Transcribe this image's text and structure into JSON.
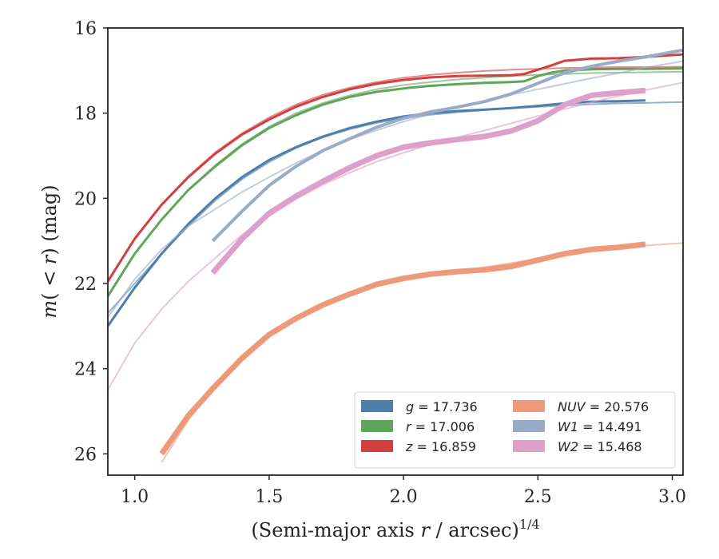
{
  "chart_data": {
    "type": "line",
    "title": "",
    "xlabel": "(Semi-major axis r / arcsec)^1/4",
    "xlabel_parts": {
      "prefix": "(Semi-major axis ",
      "var": "r",
      "suffix": " / arcsec)",
      "exp": "1/4"
    },
    "ylabel": "m(< r) (mag)",
    "ylabel_parts": {
      "m": "m",
      "open": "(",
      "lt": " < ",
      "r": "r",
      "close": ")",
      "unit": " (mag)"
    },
    "xlim": [
      0.9,
      3.04
    ],
    "ylim": [
      26.5,
      16
    ],
    "y_inverted": true,
    "x_ticks": [
      1.0,
      1.5,
      2.0,
      2.5,
      3.0
    ],
    "x_tick_labels": [
      "1.0",
      "1.5",
      "2.0",
      "2.5",
      "3.0"
    ],
    "y_ticks": [
      16,
      18,
      20,
      22,
      24,
      26
    ],
    "y_tick_labels": [
      "16",
      "18",
      "20",
      "22",
      "24",
      "26"
    ],
    "grid": false,
    "legend_position": "lower-right",
    "legend_columns": 2,
    "series": [
      {
        "name": "g = 17.736",
        "band": "g",
        "mag": "17.736",
        "color": "#4c7fac",
        "data": [
          [
            0.9,
            23.0
          ],
          [
            1.0,
            22.1
          ],
          [
            1.1,
            21.3
          ],
          [
            1.2,
            20.6
          ],
          [
            1.3,
            20.0
          ],
          [
            1.4,
            19.5
          ],
          [
            1.5,
            19.1
          ],
          [
            1.6,
            18.8
          ],
          [
            1.7,
            18.55
          ],
          [
            1.8,
            18.35
          ],
          [
            1.9,
            18.2
          ],
          [
            2.0,
            18.08
          ],
          [
            2.1,
            18.0
          ],
          [
            2.2,
            17.95
          ],
          [
            2.3,
            17.92
          ],
          [
            2.4,
            17.88
          ],
          [
            2.5,
            17.83
          ],
          [
            2.6,
            17.77
          ],
          [
            2.7,
            17.73
          ],
          [
            2.8,
            17.72
          ],
          [
            2.9,
            17.7
          ]
        ],
        "model": [
          [
            0.9,
            22.7
          ],
          [
            1.0,
            22.0
          ],
          [
            1.1,
            21.3
          ],
          [
            1.2,
            20.65
          ],
          [
            1.3,
            20.05
          ],
          [
            1.4,
            19.55
          ],
          [
            1.5,
            19.15
          ],
          [
            1.6,
            18.82
          ],
          [
            1.7,
            18.57
          ],
          [
            1.8,
            18.38
          ],
          [
            1.9,
            18.23
          ],
          [
            2.0,
            18.12
          ],
          [
            2.1,
            18.04
          ],
          [
            2.2,
            17.98
          ],
          [
            2.3,
            17.93
          ],
          [
            2.4,
            17.89
          ],
          [
            2.5,
            17.85
          ],
          [
            2.6,
            17.82
          ],
          [
            2.7,
            17.79
          ],
          [
            2.8,
            17.77
          ],
          [
            2.9,
            17.76
          ],
          [
            3.04,
            17.74
          ]
        ]
      },
      {
        "name": "r = 17.006",
        "band": "r",
        "mag": "17.006",
        "color": "#5fa55a",
        "data": [
          [
            0.9,
            22.3
          ],
          [
            1.0,
            21.3
          ],
          [
            1.1,
            20.5
          ],
          [
            1.2,
            19.8
          ],
          [
            1.3,
            19.25
          ],
          [
            1.4,
            18.75
          ],
          [
            1.5,
            18.35
          ],
          [
            1.6,
            18.05
          ],
          [
            1.7,
            17.8
          ],
          [
            1.8,
            17.62
          ],
          [
            1.9,
            17.5
          ],
          [
            2.0,
            17.42
          ],
          [
            2.1,
            17.36
          ],
          [
            2.2,
            17.32
          ],
          [
            2.3,
            17.29
          ],
          [
            2.4,
            17.27
          ],
          [
            2.45,
            17.25
          ],
          [
            2.5,
            17.13
          ],
          [
            2.55,
            17.05
          ],
          [
            2.6,
            17.0
          ],
          [
            2.7,
            16.97
          ],
          [
            2.8,
            16.96
          ],
          [
            2.9,
            16.96
          ],
          [
            3.04,
            16.95
          ]
        ],
        "model": [
          [
            0.9,
            22.3
          ],
          [
            1.0,
            21.3
          ],
          [
            1.1,
            20.5
          ],
          [
            1.2,
            19.8
          ],
          [
            1.3,
            19.22
          ],
          [
            1.4,
            18.72
          ],
          [
            1.5,
            18.32
          ],
          [
            1.6,
            18.0
          ],
          [
            1.7,
            17.76
          ],
          [
            1.8,
            17.58
          ],
          [
            1.9,
            17.44
          ],
          [
            2.0,
            17.34
          ],
          [
            2.1,
            17.27
          ],
          [
            2.2,
            17.21
          ],
          [
            2.3,
            17.17
          ],
          [
            2.4,
            17.13
          ],
          [
            2.5,
            17.1
          ],
          [
            2.6,
            17.08
          ],
          [
            2.7,
            17.06
          ],
          [
            2.8,
            17.05
          ],
          [
            2.9,
            17.04
          ],
          [
            3.04,
            17.03
          ]
        ]
      },
      {
        "name": "z = 16.859",
        "band": "z",
        "mag": "16.859",
        "color": "#d23f3f",
        "data": [
          [
            0.9,
            21.95
          ],
          [
            1.0,
            20.95
          ],
          [
            1.1,
            20.15
          ],
          [
            1.2,
            19.5
          ],
          [
            1.3,
            18.95
          ],
          [
            1.4,
            18.5
          ],
          [
            1.5,
            18.15
          ],
          [
            1.6,
            17.85
          ],
          [
            1.7,
            17.62
          ],
          [
            1.8,
            17.44
          ],
          [
            1.9,
            17.31
          ],
          [
            2.0,
            17.22
          ],
          [
            2.1,
            17.16
          ],
          [
            2.2,
            17.13
          ],
          [
            2.3,
            17.12
          ],
          [
            2.4,
            17.11
          ],
          [
            2.45,
            17.08
          ],
          [
            2.5,
            16.98
          ],
          [
            2.55,
            16.88
          ],
          [
            2.6,
            16.77
          ],
          [
            2.7,
            16.72
          ],
          [
            2.8,
            16.71
          ],
          [
            2.9,
            16.68
          ],
          [
            3.04,
            16.62
          ]
        ],
        "model": [
          [
            0.9,
            21.95
          ],
          [
            1.0,
            20.95
          ],
          [
            1.1,
            20.15
          ],
          [
            1.2,
            19.48
          ],
          [
            1.3,
            18.92
          ],
          [
            1.4,
            18.47
          ],
          [
            1.5,
            18.1
          ],
          [
            1.6,
            17.8
          ],
          [
            1.7,
            17.57
          ],
          [
            1.8,
            17.4
          ],
          [
            1.9,
            17.27
          ],
          [
            2.0,
            17.17
          ],
          [
            2.1,
            17.1
          ],
          [
            2.2,
            17.05
          ],
          [
            2.3,
            17.01
          ],
          [
            2.4,
            16.98
          ],
          [
            2.5,
            16.96
          ],
          [
            2.6,
            16.94
          ],
          [
            2.7,
            16.93
          ],
          [
            2.8,
            16.92
          ],
          [
            2.9,
            16.92
          ],
          [
            3.04,
            16.91
          ]
        ]
      },
      {
        "name": "NUV = 20.576",
        "band": "NUV",
        "mag": "20.576",
        "color": "#ee9a7a",
        "data": [
          [
            1.1,
            26.0
          ],
          [
            1.2,
            25.1
          ],
          [
            1.3,
            24.4
          ],
          [
            1.4,
            23.75
          ],
          [
            1.5,
            23.2
          ],
          [
            1.6,
            22.82
          ],
          [
            1.7,
            22.5
          ],
          [
            1.8,
            22.25
          ],
          [
            1.9,
            22.02
          ],
          [
            2.0,
            21.88
          ],
          [
            2.1,
            21.78
          ],
          [
            2.2,
            21.72
          ],
          [
            2.3,
            21.68
          ],
          [
            2.4,
            21.6
          ],
          [
            2.5,
            21.45
          ],
          [
            2.6,
            21.3
          ],
          [
            2.7,
            21.2
          ],
          [
            2.8,
            21.15
          ],
          [
            2.9,
            21.08
          ]
        ],
        "model": [
          [
            1.1,
            26.2
          ],
          [
            1.2,
            25.2
          ],
          [
            1.3,
            24.4
          ],
          [
            1.4,
            23.72
          ],
          [
            1.5,
            23.2
          ],
          [
            1.6,
            22.8
          ],
          [
            1.7,
            22.48
          ],
          [
            1.8,
            22.22
          ],
          [
            1.9,
            22.02
          ],
          [
            2.0,
            21.88
          ],
          [
            2.1,
            21.78
          ],
          [
            2.2,
            21.7
          ],
          [
            2.3,
            21.62
          ],
          [
            2.4,
            21.52
          ],
          [
            2.5,
            21.42
          ],
          [
            2.6,
            21.32
          ],
          [
            2.7,
            21.24
          ],
          [
            2.8,
            21.17
          ],
          [
            2.9,
            21.11
          ],
          [
            3.04,
            21.05
          ]
        ]
      },
      {
        "name": "W1 = 14.491",
        "band": "W1",
        "mag": "14.491",
        "color": "#9aabc8",
        "data": [
          [
            1.29,
            21.0
          ],
          [
            1.4,
            20.3
          ],
          [
            1.5,
            19.7
          ],
          [
            1.6,
            19.25
          ],
          [
            1.7,
            18.88
          ],
          [
            1.8,
            18.6
          ],
          [
            1.9,
            18.33
          ],
          [
            2.0,
            18.12
          ],
          [
            2.1,
            17.97
          ],
          [
            2.2,
            17.86
          ],
          [
            2.3,
            17.73
          ],
          [
            2.4,
            17.55
          ],
          [
            2.5,
            17.3
          ],
          [
            2.6,
            17.05
          ],
          [
            2.7,
            16.9
          ],
          [
            2.8,
            16.78
          ],
          [
            2.9,
            16.68
          ],
          [
            3.04,
            16.52
          ]
        ],
        "model": [
          [
            0.9,
            22.8
          ],
          [
            1.0,
            21.9
          ],
          [
            1.1,
            21.2
          ],
          [
            1.2,
            20.65
          ],
          [
            1.3,
            20.25
          ],
          [
            1.4,
            19.85
          ],
          [
            1.5,
            19.5
          ],
          [
            1.6,
            19.17
          ],
          [
            1.7,
            18.87
          ],
          [
            1.8,
            18.62
          ],
          [
            1.9,
            18.4
          ],
          [
            2.0,
            18.2
          ],
          [
            2.1,
            18.02
          ],
          [
            2.2,
            17.86
          ],
          [
            2.3,
            17.71
          ],
          [
            2.4,
            17.57
          ],
          [
            2.5,
            17.44
          ],
          [
            2.6,
            17.31
          ],
          [
            2.7,
            17.18
          ],
          [
            2.8,
            17.06
          ],
          [
            2.9,
            16.93
          ],
          [
            3.04,
            16.78
          ]
        ]
      },
      {
        "name": "W2 = 15.468",
        "band": "W2",
        "mag": "15.468",
        "color": "#de9fcb",
        "data": [
          [
            1.29,
            21.75
          ],
          [
            1.4,
            20.95
          ],
          [
            1.5,
            20.35
          ],
          [
            1.6,
            19.95
          ],
          [
            1.7,
            19.6
          ],
          [
            1.8,
            19.28
          ],
          [
            1.9,
            19.0
          ],
          [
            2.0,
            18.8
          ],
          [
            2.1,
            18.7
          ],
          [
            2.2,
            18.62
          ],
          [
            2.3,
            18.55
          ],
          [
            2.4,
            18.42
          ],
          [
            2.5,
            18.18
          ],
          [
            2.6,
            17.8
          ],
          [
            2.7,
            17.58
          ],
          [
            2.8,
            17.52
          ],
          [
            2.9,
            17.47
          ]
        ],
        "model": [
          [
            0.9,
            24.5
          ],
          [
            1.0,
            23.4
          ],
          [
            1.1,
            22.6
          ],
          [
            1.2,
            21.95
          ],
          [
            1.3,
            21.4
          ],
          [
            1.4,
            20.85
          ],
          [
            1.5,
            20.42
          ],
          [
            1.6,
            20.02
          ],
          [
            1.7,
            19.68
          ],
          [
            1.8,
            19.4
          ],
          [
            1.9,
            19.14
          ],
          [
            2.0,
            18.93
          ],
          [
            2.1,
            18.74
          ],
          [
            2.2,
            18.57
          ],
          [
            2.3,
            18.41
          ],
          [
            2.4,
            18.24
          ],
          [
            2.5,
            18.07
          ],
          [
            2.6,
            17.9
          ],
          [
            2.7,
            17.74
          ],
          [
            2.8,
            17.6
          ],
          [
            2.9,
            17.46
          ],
          [
            3.04,
            17.28
          ]
        ]
      }
    ]
  }
}
